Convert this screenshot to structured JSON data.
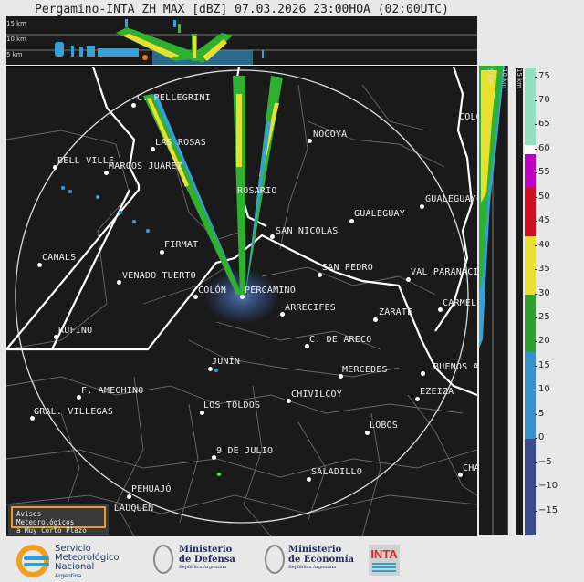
{
  "title": "Pergamino-INTA ZH MAX [dBZ] 07.03.2026 23:00HOA (02:00UTC)",
  "top_panel": {
    "height_labels": [
      "15 km",
      "10 km",
      "5 km"
    ]
  },
  "side_panel": {
    "height_labels": [
      "5 km",
      "10 km",
      "15 km"
    ]
  },
  "colorbar": {
    "unit": "dBZ",
    "range": [
      -20,
      77
    ],
    "ticks": [
      "75",
      "70",
      "65",
      "60",
      "55",
      "50",
      "45",
      "40",
      "35",
      "30",
      "25",
      "20",
      "15",
      "10",
      "5",
      "0",
      "−5",
      "−10",
      "−15"
    ],
    "colors": {
      "below_0": "#3a4a8a",
      "0_18": "#3a90c8",
      "18_30": "#30a030",
      "30_42": "#e8e030",
      "42_52": "#d01020",
      "52_59": "#c000c0",
      "59_61": "#ffffff",
      "61_77": "#90e0c0"
    }
  },
  "map": {
    "radar_site": "PERGAMINO",
    "cities": [
      "C. PELLEGRINI",
      "LAS ROSAS",
      "NOGOYA",
      "BELL VILLE",
      "MARCOS JUÁREZ",
      "ROSARIO",
      "GUALEGUAY",
      "GUALEGUAYC",
      "SAN NICOLAS",
      "FIRMAT",
      "SAN PEDRO",
      "VAL PARANACI",
      "CANALS",
      "VENADO TUERTO",
      "COLÓN",
      "PERGAMINO",
      "CARMELO",
      "ARRECIFES",
      "ZÁRATE",
      "RUFINO",
      "C. DE ARECO",
      "BUENOS A",
      "MERCEDES",
      "JUNÍN",
      "F. AMEGHINO",
      "EZEIZA",
      "CHIVILCOY",
      "GRAL. VILLEGAS",
      "LOS TOLDOS",
      "LOBOS",
      "9 DE JULIO",
      "SALADILLO",
      "CHA",
      "PEHUAJÓ",
      "TRENQUE LAUQUEN",
      "COLO"
    ]
  },
  "alert_box": {
    "line1": "Avisos Meteorológicos",
    "line2": "a Muy Corto Plazo"
  },
  "logos": {
    "smn": [
      "Servicio",
      "Meteorológico",
      "Nacional",
      "Argentina"
    ],
    "defensa": [
      "Ministerio",
      "de Defensa",
      "República Argentina"
    ],
    "economia": [
      "Ministerio",
      "de Economía",
      "República Argentina"
    ],
    "inta": "INTA"
  }
}
